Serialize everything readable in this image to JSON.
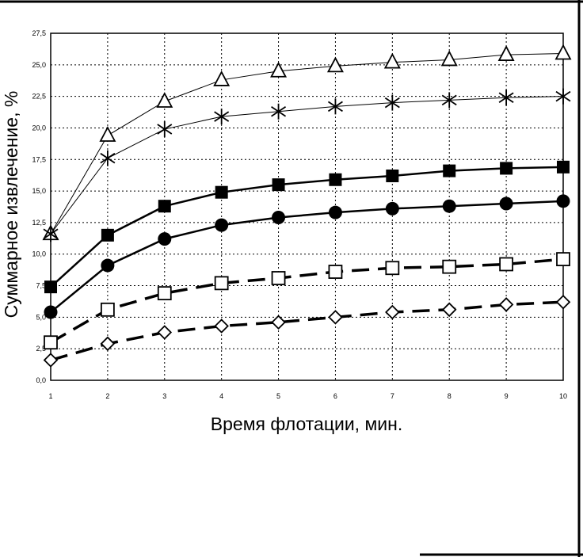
{
  "chart_data": {
    "type": "line",
    "xlabel": "Время флотации, мин.",
    "ylabel": "Суммарное извлечение, %",
    "x": [
      1,
      2,
      3,
      4,
      5,
      6,
      7,
      8,
      9,
      10
    ],
    "x_tick_labels": [
      "1",
      "2",
      "3",
      "4",
      "5",
      "6",
      "7",
      "8",
      "9",
      "10"
    ],
    "ylim": [
      0,
      27.5
    ],
    "y_ticks": [
      0,
      2.5,
      5,
      7.5,
      10,
      12.5,
      15,
      17.5,
      20,
      22.5,
      25,
      27.5
    ],
    "y_tick_labels": [
      "0,0",
      "2,5",
      "5,0",
      "7,5",
      "10,0",
      "12,5",
      "15,0",
      "17,5",
      "20,0",
      "22,5",
      "25,0",
      "27,5"
    ],
    "grid": true,
    "legend": "none",
    "series": [
      {
        "marker": "triangle-open",
        "line": "thin-solid",
        "values": [
          11.6,
          19.4,
          22.1,
          23.8,
          24.5,
          24.9,
          25.2,
          25.4,
          25.8,
          25.9
        ]
      },
      {
        "marker": "asterisk",
        "line": "thin-solid",
        "values": [
          11.6,
          17.6,
          19.9,
          20.9,
          21.3,
          21.7,
          22.0,
          22.2,
          22.4,
          22.5
        ]
      },
      {
        "marker": "square-filled",
        "line": "thick-solid",
        "values": [
          7.4,
          11.5,
          13.8,
          14.9,
          15.5,
          15.9,
          16.2,
          16.6,
          16.8,
          16.9
        ]
      },
      {
        "marker": "circle-filled",
        "line": "thick-solid",
        "values": [
          5.4,
          9.1,
          11.2,
          12.3,
          12.9,
          13.3,
          13.6,
          13.8,
          14.0,
          14.2
        ]
      },
      {
        "marker": "square-open",
        "line": "thick-dashed",
        "values": [
          3.0,
          5.6,
          6.9,
          7.7,
          8.1,
          8.6,
          8.9,
          9.0,
          9.2,
          9.6
        ]
      },
      {
        "marker": "diamond-open",
        "line": "thick-dashed",
        "values": [
          1.6,
          2.9,
          3.8,
          4.3,
          4.6,
          5.0,
          5.4,
          5.6,
          6.0,
          6.2
        ]
      }
    ]
  }
}
